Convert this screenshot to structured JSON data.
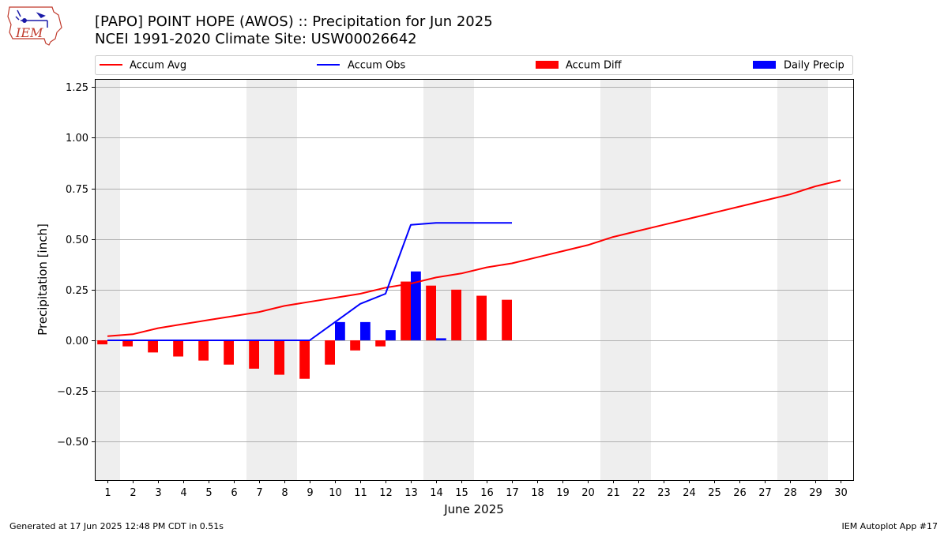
{
  "header": {
    "title_line1": "[PAPO] POINT HOPE (AWOS) :: Precipitation for Jun 2025",
    "title_line2": "NCEI 1991-2020 Climate Site: USW00026642"
  },
  "logo": {
    "text": "IEM",
    "color": "#c0392b",
    "accent": "#1a1aa8"
  },
  "footer": {
    "left": "Generated at 17 Jun 2025 12:48 PM CDT in 0.51s",
    "right": "IEM Autoplot App #17"
  },
  "colors": {
    "avg": "#ff0000",
    "obs": "#0000ff",
    "diff": "#ff0000",
    "daily": "#0000ff",
    "weekend": "#eeeeee",
    "grid": "#b0b0b0"
  },
  "chart_data": {
    "type": "bar",
    "xlabel": "June 2025",
    "ylabel": "Precipitation [inch]",
    "xlim": [
      0.5,
      30.5
    ],
    "ylim": [
      -0.69,
      1.29
    ],
    "yticks": [
      -0.5,
      -0.25,
      0.0,
      0.25,
      0.5,
      0.75,
      1.0,
      1.25
    ],
    "ytick_labels": [
      "−0.50",
      "−0.25",
      "0.00",
      "0.25",
      "0.50",
      "0.75",
      "1.00",
      "1.25"
    ],
    "days": [
      1,
      2,
      3,
      4,
      5,
      6,
      7,
      8,
      9,
      10,
      11,
      12,
      13,
      14,
      15,
      16,
      17,
      18,
      19,
      20,
      21,
      22,
      23,
      24,
      25,
      26,
      27,
      28,
      29,
      30
    ],
    "weekend_days": [
      1,
      7,
      8,
      14,
      15,
      21,
      22,
      28,
      29
    ],
    "grid": true,
    "legend_position": "top",
    "series": [
      {
        "name": "Accum Avg",
        "kind": "line",
        "x": [
          1,
          2,
          3,
          4,
          5,
          6,
          7,
          8,
          9,
          10,
          11,
          12,
          13,
          14,
          15,
          16,
          17,
          18,
          19,
          20,
          21,
          22,
          23,
          24,
          25,
          26,
          27,
          28,
          29,
          30
        ],
        "values": [
          0.02,
          0.03,
          0.06,
          0.08,
          0.1,
          0.12,
          0.14,
          0.17,
          0.19,
          0.21,
          0.23,
          0.26,
          0.28,
          0.31,
          0.33,
          0.36,
          0.38,
          0.41,
          0.44,
          0.47,
          0.51,
          0.54,
          0.57,
          0.6,
          0.63,
          0.66,
          0.69,
          0.72,
          0.76,
          0.79
        ]
      },
      {
        "name": "Accum Obs",
        "kind": "line",
        "x": [
          1,
          2,
          3,
          4,
          5,
          6,
          7,
          8,
          9,
          10,
          11,
          12,
          13,
          14,
          15,
          16,
          17
        ],
        "values": [
          0,
          0,
          0,
          0,
          0,
          0,
          0,
          0,
          0,
          0.09,
          0.18,
          0.23,
          0.57,
          0.58,
          0.58,
          0.58,
          0.58
        ]
      },
      {
        "name": "Accum Diff",
        "kind": "bar",
        "x": [
          1,
          2,
          3,
          4,
          5,
          6,
          7,
          8,
          9,
          10,
          11,
          12,
          13,
          14,
          15,
          16,
          17
        ],
        "values": [
          -0.02,
          -0.03,
          -0.06,
          -0.08,
          -0.1,
          -0.12,
          -0.14,
          -0.17,
          -0.19,
          -0.12,
          -0.05,
          -0.03,
          0.29,
          0.27,
          0.25,
          0.22,
          0.2
        ]
      },
      {
        "name": "Daily Precip",
        "kind": "bar",
        "x": [
          10,
          11,
          12,
          13,
          14
        ],
        "values": [
          0.09,
          0.09,
          0.05,
          0.34,
          0.01
        ]
      }
    ]
  }
}
